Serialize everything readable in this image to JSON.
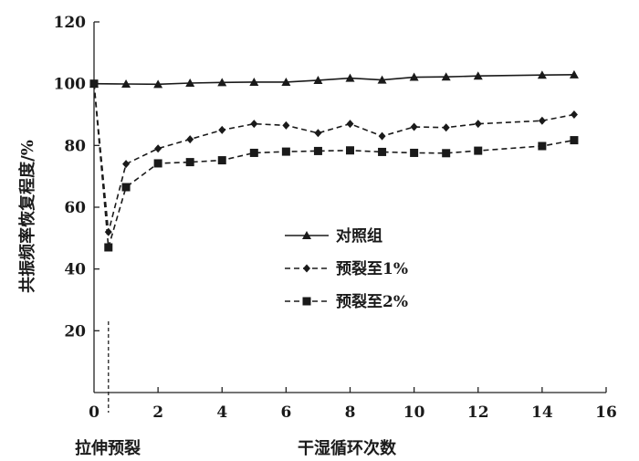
{
  "chart_data": {
    "type": "line",
    "xlabel": "干湿循环次数",
    "ylabel": "共振频率恢复程度/%",
    "xlim": [
      0,
      16
    ],
    "ylim": [
      0,
      120
    ],
    "x_ticks": [
      0,
      2,
      4,
      6,
      8,
      10,
      12,
      14,
      16
    ],
    "y_ticks": [
      20,
      40,
      60,
      80,
      100,
      120
    ],
    "grid": false,
    "legend_position": "center-right",
    "annotation": {
      "text": "拉伸预裂",
      "x": 0.45
    },
    "series": [
      {
        "name": "对照组",
        "marker": "triangle",
        "line_style": "solid",
        "x": [
          0,
          1,
          2,
          3,
          4,
          5,
          6,
          7,
          8,
          9,
          10,
          11,
          12,
          14,
          15
        ],
        "y": [
          100,
          99.9,
          99.8,
          100.2,
          100.4,
          100.5,
          100.5,
          101.1,
          101.8,
          101.2,
          102.1,
          102.2,
          102.5,
          102.8,
          102.9
        ]
      },
      {
        "name": "预裂至1%",
        "marker": "diamond",
        "line_style": "dashed",
        "x": [
          0,
          0.45,
          1,
          2,
          3,
          4,
          5,
          6,
          7,
          8,
          9,
          10,
          11,
          12,
          14,
          15
        ],
        "y": [
          100,
          52,
          74,
          79,
          82,
          85,
          87,
          86.5,
          84,
          87,
          83,
          86,
          85.8,
          87,
          88,
          90
        ]
      },
      {
        "name": "预裂至2%",
        "marker": "square",
        "line_style": "dashed",
        "x": [
          0,
          0.45,
          1,
          2,
          3,
          4,
          5,
          6,
          7,
          8,
          9,
          10,
          11,
          12,
          14,
          15
        ],
        "y": [
          100,
          47,
          66.5,
          74.2,
          74.6,
          75.2,
          77.6,
          78,
          78.2,
          78.4,
          77.9,
          77.6,
          77.5,
          78.3,
          79.8,
          81.7
        ]
      }
    ]
  }
}
